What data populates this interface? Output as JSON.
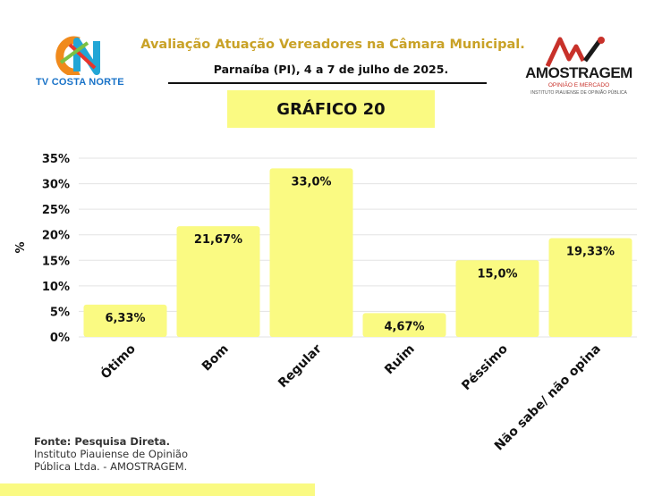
{
  "header": {
    "title": "Avaliação Atuação Vereadores na Câmara Municipal.",
    "subtitle": "Parnaíba (PI), 4 a 7 de julho de 2025.",
    "badge": "GRÁFICO 20"
  },
  "logos": {
    "left": {
      "text": "TV COSTA NORTE",
      "mark": "CN"
    },
    "right": {
      "name": "AMOSTRAGEM",
      "tagline": "OPINIÃO E MERCADO",
      "institute": "INSTITUTO PIAUIENSE DE OPINIÃO PÚBLICA"
    }
  },
  "source": {
    "heading": "Fonte: Pesquisa Direta.",
    "body": "Instituto Piauiense de Opinião Pública Ltda. - AMOSTRAGEM."
  },
  "colors": {
    "bar": "#fafa82",
    "grid": "#e3e3e3",
    "title": "#c9a227",
    "accent": "#fafa82"
  },
  "chart_data": {
    "type": "bar",
    "title": "GRÁFICO 20",
    "xlabel": "",
    "ylabel": "%",
    "ylim": [
      0,
      35
    ],
    "yticks": [
      0,
      5,
      10,
      15,
      20,
      25,
      30,
      35
    ],
    "ytick_labels": [
      "0%",
      "5%",
      "10%",
      "15%",
      "20%",
      "25%",
      "30%",
      "35%"
    ],
    "categories": [
      "Ótimo",
      "Bom",
      "Regular",
      "Ruim",
      "Péssimo",
      "Não sabe/ não opina"
    ],
    "values": [
      6.33,
      21.67,
      33.0,
      4.67,
      15.0,
      19.33
    ],
    "value_labels": [
      "6,33%",
      "21,67%",
      "33,0%",
      "4,67%",
      "15,0%",
      "19,33%"
    ],
    "grid": true,
    "legend": "none"
  }
}
